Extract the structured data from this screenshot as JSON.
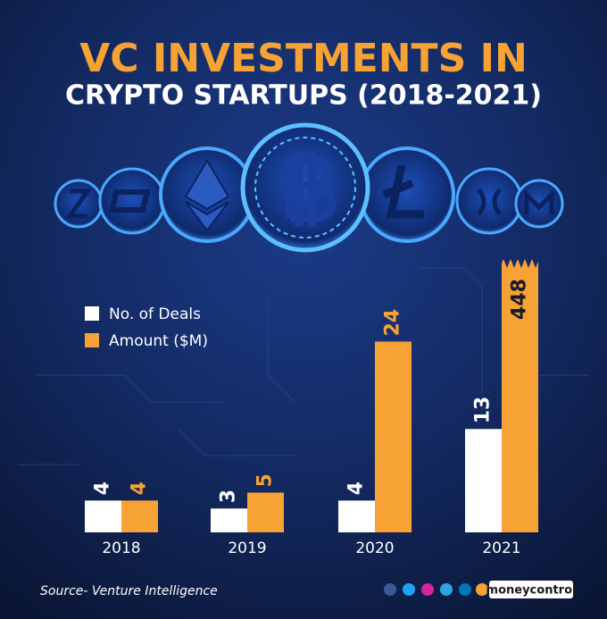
{
  "chart_data": {
    "type": "bar",
    "title": "VC INVESTMENTS IN",
    "subtitle": "CRYPTO STARTUPS (2018-2021)",
    "categories": [
      "2018",
      "2019",
      "2020",
      "2021"
    ],
    "series": [
      {
        "name": "No. of Deals",
        "color": "#ffffff",
        "values": [
          4,
          3,
          4,
          13
        ]
      },
      {
        "name": "Amount ($M)",
        "color": "#f7a234",
        "values": [
          4,
          5,
          24,
          448
        ]
      }
    ],
    "source": "Source- Venture Intelligence"
  },
  "footer": {
    "brand": "moneycontrol"
  }
}
